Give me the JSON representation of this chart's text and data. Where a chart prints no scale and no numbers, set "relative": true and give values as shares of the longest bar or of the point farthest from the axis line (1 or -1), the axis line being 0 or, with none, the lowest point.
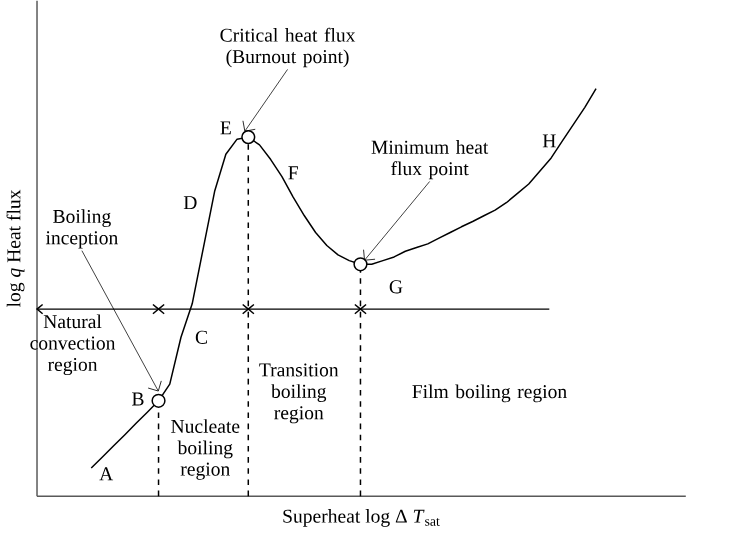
{
  "chart_data": {
    "type": "line",
    "relative": true,
    "xlabel": "Superheat log Δ *T*$_{sat}$",
    "ylabel": "log *q* Heat flux",
    "categories": [
      null,
      null,
      null,
      null,
      null,
      null,
      null,
      null,
      null,
      null,
      null,
      null,
      null,
      null,
      null,
      null,
      null,
      null,
      null,
      null,
      null,
      null,
      null,
      null,
      null,
      null,
      null,
      null,
      null,
      null,
      null,
      null,
      null,
      null,
      null,
      null,
      null,
      null,
      null,
      null,
      null,
      null,
      null,
      null,
      null,
      null
    ],
    "series": [
      {
        "color": "#000000",
        "values": [
          0.069,
          0.096,
          0.124,
          0.151,
          0.179,
          0.206,
          0.234,
          0.275,
          0.39,
          0.472,
          0.61,
          0.748,
          0.839,
          0.876,
          0.881,
          0.862,
          0.826,
          0.784,
          0.734,
          0.688,
          0.647,
          0.615,
          0.592,
          0.578,
          0.569,
          0.569,
          0.578,
          0.587,
          0.601,
          0.61,
          0.619,
          0.633,
          0.647,
          0.661,
          0.674,
          0.688,
          0.702,
          0.72,
          0.743,
          0.766,
          0.798,
          0.83,
          0.872,
          0.913,
          0.954,
          1
        ]
      }
    ],
    "ref_lines": [
      {
        "axis": "y",
        "value": 0.459,
        "line_style": "solid"
      }
    ],
    "annotations": [
      "Critical heat flux (Burnout point)",
      "Minimum heat flux point",
      "Boiling inception",
      "A",
      "B",
      "C",
      "D",
      "E",
      "F",
      "G",
      "H",
      "Natural convection region",
      "Nucleate boiling region",
      "Transition boiling region",
      "Film boiling region"
    ]
  }
}
